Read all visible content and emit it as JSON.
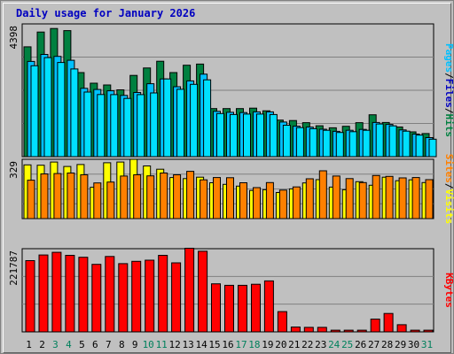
{
  "chart_data": {
    "type": "bar",
    "title": "Daily usage for January 2026",
    "colors": {
      "hits": "#008040",
      "files": "#00c0ff",
      "pages": "#00e0ff",
      "visits": "#ffff00",
      "sites": "#ff8000",
      "kbytes": "#ff0000",
      "weekend_label": "#00805c",
      "weekday_label": "#000000",
      "grid": "#808080",
      "background": "#c0c0c0"
    },
    "days": [
      "1",
      "2",
      "3",
      "4",
      "5",
      "6",
      "7",
      "8",
      "9",
      "10",
      "11",
      "12",
      "13",
      "14",
      "15",
      "16",
      "17",
      "18",
      "19",
      "20",
      "21",
      "22",
      "23",
      "24",
      "25",
      "26",
      "27",
      "28",
      "29",
      "30",
      "31"
    ],
    "weekend_days": [
      "3",
      "4",
      "10",
      "11",
      "17",
      "18",
      "24",
      "25",
      "31"
    ],
    "panels": {
      "usage": {
        "max_label": "4398",
        "ymax": 4398,
        "side_labels": [
          {
            "text": "Pages",
            "color": "#00c0ff"
          },
          {
            "text": "/",
            "color": "#000000"
          },
          {
            "text": "Files",
            "color": "#0000c0"
          },
          {
            "text": "/",
            "color": "#000000"
          },
          {
            "text": "Hits",
            "color": "#008040"
          }
        ],
        "series": [
          {
            "name": "Hits",
            "key": "hits",
            "values": [
              3640,
              4128,
              4247,
              4175,
              2785,
              2433,
              2375,
              2213,
              2693,
              2938,
              3160,
              2785,
              3030,
              3066,
              1592,
              1592,
              1592,
              1607,
              1519,
              1212,
              1197,
              1126,
              1024,
              955,
              1005,
              1126,
              1387,
              1131,
              982,
              822,
              764
            ]
          },
          {
            "name": "Files",
            "key": "files",
            "values": [
              3156,
              3386,
              3322,
              3192,
              2263,
              2226,
              2180,
              2030,
              2126,
              2416,
              2574,
              2316,
              2511,
              2734,
              1500,
              1470,
              1459,
              1483,
              1485,
              1145,
              1010,
              978,
              910,
              840,
              873,
              904,
              1131,
              1068,
              886,
              747,
              630
            ]
          },
          {
            "name": "Pages",
            "key": "pages",
            "values": [
              3010,
              3280,
              3120,
              2905,
              2140,
              2058,
              2056,
              1929,
              2056,
              2110,
              2574,
              2230,
              2395,
              2546,
              1427,
              1397,
              1410,
              1410,
              1397,
              1040,
              962,
              927,
              875,
              800,
              828,
              874,
              1083,
              1020,
              843,
              712,
              577
            ]
          }
        ]
      },
      "visits": {
        "max_label": "329",
        "ymax": 329,
        "side_labels": [
          {
            "text": "Sites",
            "color": "#ff8000"
          },
          {
            "text": "/",
            "color": "#000000"
          },
          {
            "text": "Visits",
            "color": "#ffff00"
          }
        ],
        "series": [
          {
            "name": "Visits",
            "key": "visits",
            "values": [
              298,
              296,
              314,
              289,
              300,
              174,
              310,
              314,
              329,
              292,
              274,
              228,
              222,
              230,
              199,
              190,
              180,
              156,
              160,
              145,
              165,
              198,
              216,
              175,
              160,
              205,
              185,
              230,
              210,
              215,
              200
            ]
          },
          {
            "name": "Sites",
            "key": "sites",
            "values": [
              213,
              248,
              250,
              253,
              243,
              198,
              203,
              236,
              243,
              237,
              253,
              243,
              262,
              215,
              228,
              227,
              199,
              172,
              200,
              158,
              176,
              221,
              265,
              236,
              222,
              200,
              239,
              234,
              226,
              228,
              216
            ]
          }
        ]
      },
      "kbytes": {
        "max_label": "221787",
        "ymax": 221787,
        "side_labels": [
          {
            "text": "KBytes",
            "color": "#ff0000"
          }
        ],
        "series": [
          {
            "name": "KBytes",
            "key": "kbytes",
            "values": [
              190000,
              205000,
              212000,
              204000,
              199000,
              180000,
              201000,
              182000,
              188000,
              191000,
              204000,
              184000,
              223000,
              215000,
              128000,
              124000,
              124000,
              127000,
              136000,
              54000,
              13000,
              12000,
              12000,
              4500,
              4500,
              4500,
              34000,
              49000,
              19000,
              4500,
              4500
            ]
          }
        ]
      }
    }
  }
}
